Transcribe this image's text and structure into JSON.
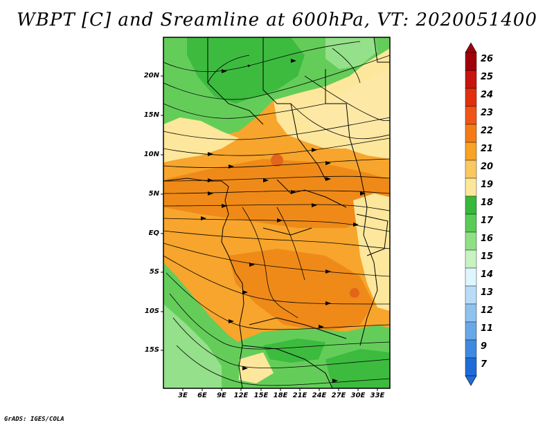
{
  "title": "WBPT [C] and Sreamline at 600hPa, VT: 2020051400",
  "credit": "GrADS: IGES/COLA",
  "map": {
    "lat_labels": [
      "20N",
      "15N",
      "10N",
      "5N",
      "EQ",
      "5S",
      "10S",
      "15S"
    ],
    "lon_labels": [
      "3E",
      "6E",
      "9E",
      "12E",
      "15E",
      "18E",
      "21E",
      "24E",
      "27E",
      "30E",
      "33E"
    ]
  },
  "colorbar": {
    "labels": [
      "26",
      "25",
      "24",
      "23",
      "22",
      "21",
      "20",
      "19",
      "18",
      "17",
      "16",
      "15",
      "14",
      "13",
      "12",
      "11",
      "9",
      "7"
    ],
    "colors": [
      "#a0000a",
      "#c8140f",
      "#e0300f",
      "#f05518",
      "#f57c15",
      "#f8a325",
      "#fbc860",
      "#fce69a",
      "#36b83a",
      "#59cc55",
      "#8fe085",
      "#c8f2c0",
      "#dff5ff",
      "#b8dcf8",
      "#90c2f0",
      "#68a8e8",
      "#3f8ae0",
      "#1f6cd8"
    ],
    "under_color": "#1f6cd8",
    "over_color": "#a0000a"
  },
  "colors": {
    "orange": "#f7a52c",
    "dark_orange": "#ef8a18",
    "yellow": "#fce79c",
    "green": "#64cd5a",
    "light_green": "#95e08a",
    "dark_green": "#3dbb3f"
  }
}
